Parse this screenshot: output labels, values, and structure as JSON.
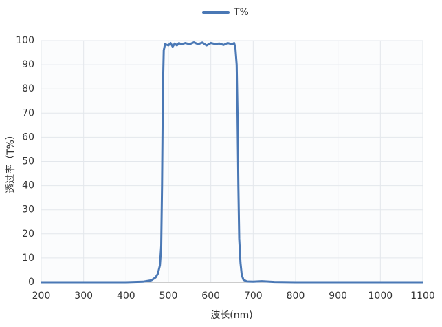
{
  "chart_data": {
    "type": "line",
    "x_label": "波长(nm)",
    "y_label": "透过率（T%）",
    "x": [
      200,
      300,
      400,
      440,
      460,
      470,
      475,
      480,
      483,
      485,
      487,
      489,
      492,
      500,
      505,
      510,
      515,
      520,
      525,
      530,
      540,
      550,
      560,
      570,
      580,
      590,
      600,
      610,
      620,
      630,
      640,
      650,
      655,
      658,
      661,
      663,
      665,
      667,
      670,
      673,
      677,
      685,
      700,
      720,
      750,
      800,
      900,
      1000,
      1100
    ],
    "series": [
      {
        "name": "T%",
        "color": "#4a78b5",
        "values": [
          0,
          0,
          0,
          0.2,
          0.8,
          2,
          3.5,
          7,
          15,
          40,
          80,
          96,
          98.5,
          98,
          99,
          97.5,
          98.8,
          98,
          99,
          98.5,
          99,
          98.5,
          99.3,
          98.5,
          99.2,
          98,
          99,
          98.6,
          98.8,
          98.2,
          99,
          98.5,
          99,
          97,
          90,
          70,
          40,
          18,
          8,
          3,
          1,
          0.3,
          0.2,
          0.4,
          0.1,
          0,
          0,
          0,
          0
        ]
      }
    ],
    "xlim": [
      200,
      1100
    ],
    "ylim": [
      0,
      100
    ],
    "xticks": [
      200,
      300,
      400,
      500,
      600,
      700,
      800,
      900,
      1000,
      1100
    ],
    "yticks": [
      0,
      10,
      20,
      30,
      40,
      50,
      60,
      70,
      80,
      90,
      100
    ],
    "grid": true,
    "legend": "top"
  }
}
